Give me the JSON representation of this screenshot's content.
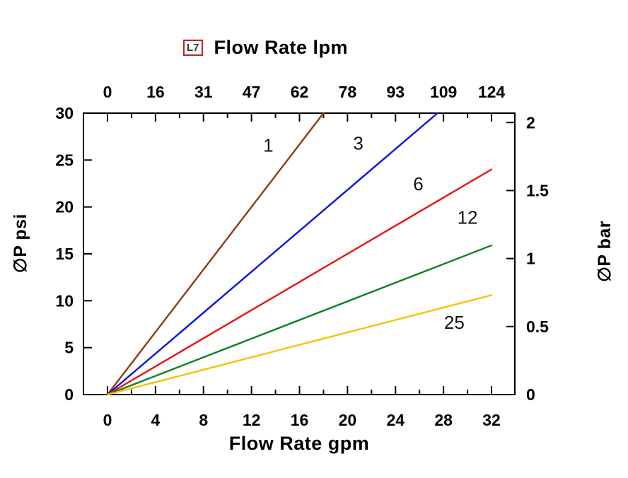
{
  "badge": {
    "text": "L7"
  },
  "chart_data": {
    "type": "line",
    "title": "Flow Rate lpm",
    "x_axis_top": {
      "label": "Flow Rate lpm",
      "unit": "lpm",
      "tick_labels": [
        "0",
        "16",
        "31",
        "47",
        "62",
        "78",
        "93",
        "109",
        "124"
      ]
    },
    "x_axis_bottom": {
      "label": "Flow Rate gpm",
      "unit": "gpm",
      "ticks": [
        0,
        4,
        8,
        12,
        16,
        20,
        24,
        28,
        32
      ],
      "minor_tick_step": 2,
      "range": [
        0,
        32
      ]
    },
    "y_axis_left": {
      "label": "∅P psi",
      "ticks": [
        0,
        5,
        10,
        15,
        20,
        25,
        30
      ],
      "range": [
        0,
        30
      ]
    },
    "y_axis_right": {
      "label": "∅P bar",
      "ticks": [
        0,
        0.5,
        1,
        1.5,
        2
      ],
      "psi_per_bar": 14.5
    },
    "grid": false,
    "legend": "labels-on-lines",
    "series": [
      {
        "name": "1",
        "color": "#8c3a10",
        "points": [
          [
            0,
            0
          ],
          [
            18,
            30
          ]
        ],
        "label_at": [
          13.4,
          25.9
        ]
      },
      {
        "name": "3",
        "color": "#0a14dc",
        "points": [
          [
            0,
            0
          ],
          [
            27.5,
            30
          ]
        ],
        "label_at": [
          20.9,
          26.1
        ]
      },
      {
        "name": "6",
        "color": "#e81212",
        "points": [
          [
            0,
            0
          ],
          [
            32,
            24
          ]
        ],
        "label_at": [
          25.9,
          21.8
        ]
      },
      {
        "name": "12",
        "color": "#0c8020",
        "points": [
          [
            0,
            0
          ],
          [
            32,
            15.9
          ]
        ],
        "label_at": [
          30.0,
          18.2
        ]
      },
      {
        "name": "25",
        "color": "#f4c400",
        "points": [
          [
            0,
            0
          ],
          [
            32,
            10.6
          ]
        ],
        "label_at": [
          28.9,
          7.0
        ]
      }
    ]
  }
}
